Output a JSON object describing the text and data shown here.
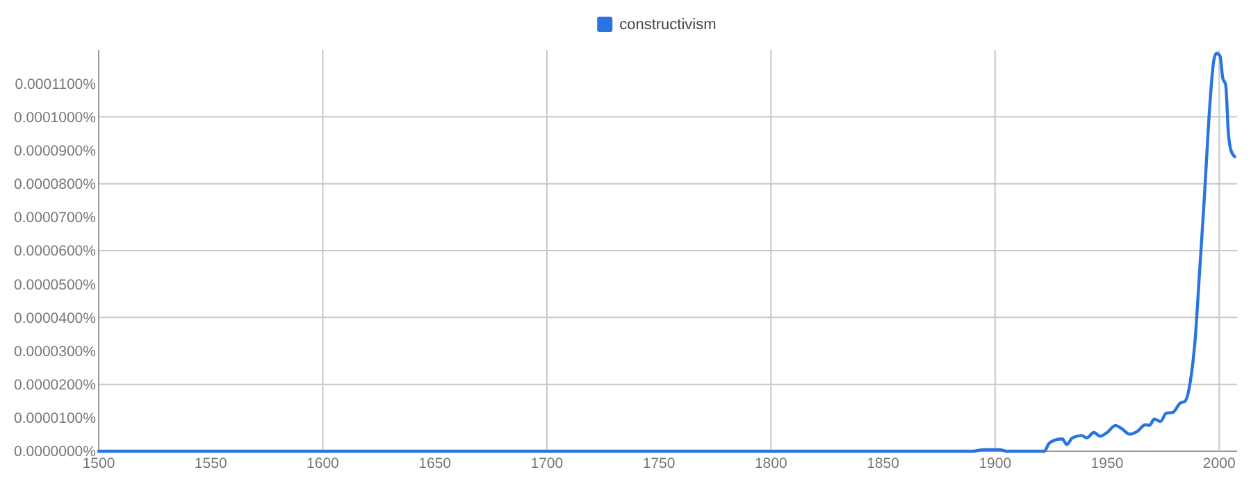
{
  "chart_data": {
    "type": "line",
    "xlim": [
      1500,
      2008
    ],
    "ylim": [
      0,
      0.00012
    ],
    "xticks": [
      1500,
      1550,
      1600,
      1650,
      1700,
      1750,
      1800,
      1850,
      1900,
      1950,
      2000
    ],
    "yticks": [
      {
        "value": 0,
        "label": "0.0000000%"
      },
      {
        "value": 1e-05,
        "label": "0.0000100%"
      },
      {
        "value": 2e-05,
        "label": "0.0000200%"
      },
      {
        "value": 3e-05,
        "label": "0.0000300%"
      },
      {
        "value": 4e-05,
        "label": "0.0000400%"
      },
      {
        "value": 5e-05,
        "label": "0.0000500%"
      },
      {
        "value": 6e-05,
        "label": "0.0000600%"
      },
      {
        "value": 7e-05,
        "label": "0.0000700%"
      },
      {
        "value": 8e-05,
        "label": "0.0000800%"
      },
      {
        "value": 9e-05,
        "label": "0.0000900%"
      },
      {
        "value": 0.0001,
        "label": "0.0001000%"
      },
      {
        "value": 0.00011,
        "label": "0.0001100%"
      }
    ],
    "grid": true,
    "legend": "top",
    "marker": "none",
    "line_style": "solid",
    "series": [
      {
        "name": "constructivism",
        "color": "#2a74e0",
        "x": [
          1500,
          1890,
          1895,
          1902,
          1905,
          1922,
          1924,
          1927,
          1930,
          1932,
          1934.5,
          1938.6,
          1941,
          1944,
          1947,
          1950,
          1953.7,
          1956.6,
          1960,
          1963.4,
          1967,
          1969,
          1971,
          1973.8,
          1976.4,
          1979.3,
          1982.6,
          1984.7,
          1987.2,
          1989.3,
          1991.3,
          1993.4,
          1995.4,
          1997.5,
          1998.7,
          2000.4,
          2001.6,
          2002.9,
          2004.1,
          2005.4,
          2007
        ],
        "values": [
          0,
          0,
          5e-07,
          5e-07,
          0,
          0,
          2.3e-06,
          3.4e-06,
          3.7e-06,
          2e-06,
          4e-06,
          4.7e-06,
          4e-06,
          5.6e-06,
          4.5e-06,
          5.6e-06,
          7.7e-06,
          6.7e-06,
          5.1e-06,
          5.9e-06,
          7.9e-06,
          7.8e-06,
          9.6e-06,
          8.9e-06,
          1.14e-05,
          1.16e-05,
          1.44e-05,
          1.49e-05,
          2.12e-05,
          3.36e-05,
          5.41e-05,
          7.6e-05,
          9.92e-05,
          0.0001164,
          0.000119,
          0.0001182,
          0.0001116,
          0.0001096,
          9.52e-05,
          8.97e-05,
          8.81e-05
        ]
      }
    ]
  }
}
